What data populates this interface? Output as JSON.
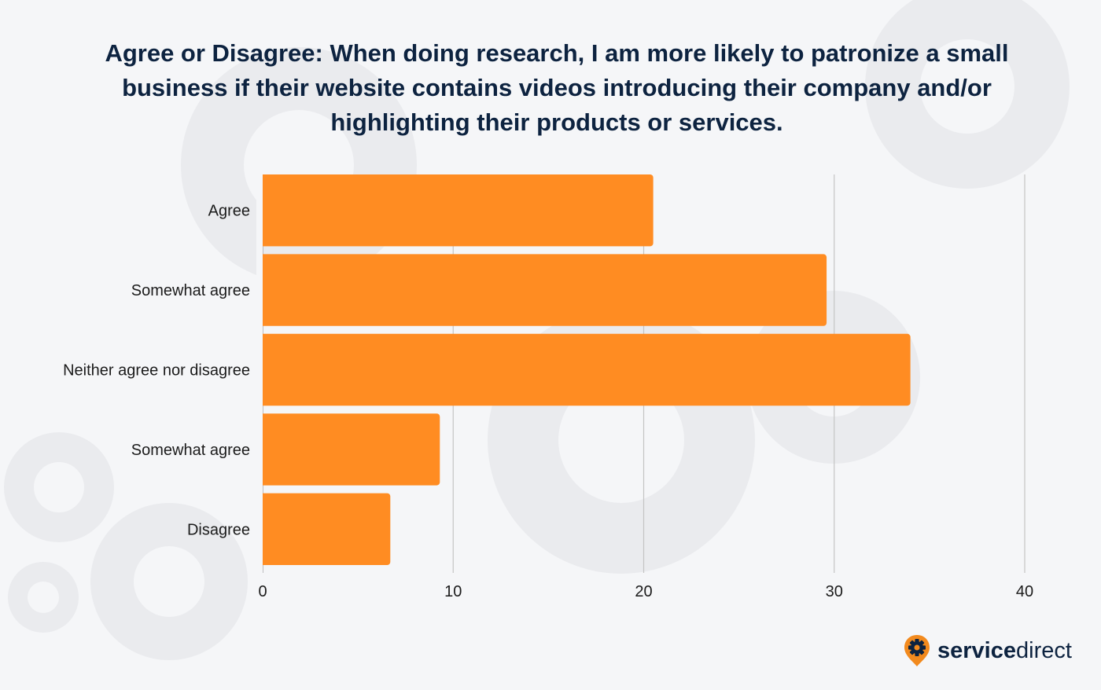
{
  "chart_data": {
    "type": "bar",
    "orientation": "horizontal",
    "title": "Agree or Disagree: When doing research, I am more likely to patronize a small business if their website contains videos introducing their company and/or highlighting their products or services.",
    "categories": [
      "Agree",
      "Somewhat agree",
      "Neither agree nor disagree",
      "Somewhat agree",
      "Disagree"
    ],
    "values": [
      20.5,
      29.6,
      34.0,
      9.3,
      6.7
    ],
    "xlim": [
      0,
      40
    ],
    "xticks": [
      0,
      10,
      20,
      30,
      40
    ],
    "xlabel": "",
    "ylabel": "",
    "grid": true,
    "bar_color": "#ff8c22"
  },
  "brand": {
    "bold": "service",
    "light": "direct",
    "accent_color": "#f28a1e",
    "icon": "gear-pin-icon"
  }
}
